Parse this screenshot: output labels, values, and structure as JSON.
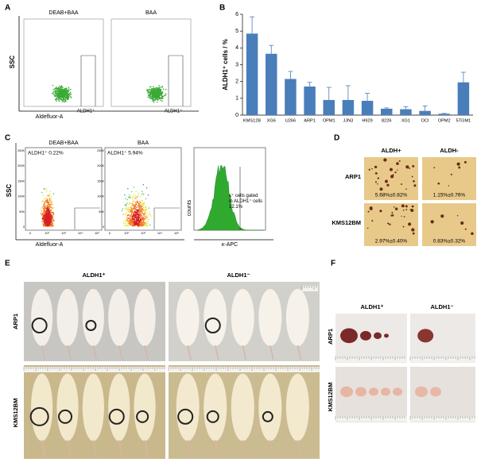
{
  "chart_data": {
    "type": "bar",
    "panel_label": "B",
    "y_label": "ALDH1⁺ cells / %",
    "categories": [
      "KMS12B",
      "XG6",
      "U266",
      "ARP1",
      "OPM1",
      "JJN3",
      "H929",
      "8226",
      "XG1",
      "OCI",
      "OPM2",
      "5TGM1"
    ],
    "values": [
      4.85,
      3.65,
      2.15,
      1.7,
      0.9,
      0.9,
      0.85,
      0.38,
      0.35,
      0.25,
      0.08,
      1.95
    ],
    "errors": [
      1.0,
      0.5,
      0.45,
      0.25,
      0.75,
      0.85,
      0.45,
      0.05,
      0.15,
      0.3,
      0.02,
      0.6
    ],
    "color": "#4a7ebb",
    "ylim": [
      0,
      6
    ],
    "yticks": [
      0,
      1,
      2,
      3,
      4,
      5,
      6
    ]
  },
  "panels": {
    "A": {
      "label": "A",
      "y_label": "SSC",
      "x_label": "Aldefluor-A",
      "plots": [
        {
          "title": "DEAB+BAA",
          "gate": "ALDH1⁺"
        },
        {
          "title": "BAA",
          "gate": "ALDH1⁺"
        }
      ]
    },
    "C": {
      "label": "C",
      "y_label": "SSC",
      "x_label": "Aldefluor-A",
      "plots": [
        {
          "title": "DEAB+BAA",
          "gate": "ALDH1⁺ 0.22%"
        },
        {
          "title": "BAA",
          "gate": "ALDH1⁺ 5.94%"
        }
      ],
      "yticks": [
        "250K",
        "200K",
        "150K",
        "100K",
        "50K",
        "0"
      ],
      "xticks": [
        "0",
        "10²",
        "10³",
        "10⁴",
        "10⁵"
      ],
      "hist": {
        "y_label": "counts",
        "x_label": "κ-APC",
        "note": "κ⁺ cells gated in ALDH1⁺ cells 12.1%"
      }
    },
    "D": {
      "label": "D",
      "columns": [
        "ALDH+",
        "ALDH-"
      ],
      "rows": [
        "ARP1",
        "KMS12BM"
      ],
      "cells": [
        [
          "5.68%±0.82%",
          "1.15%±0.76%"
        ],
        [
          "2.97%±0.40%",
          "0.83%±0.32%"
        ]
      ]
    },
    "E": {
      "label": "E",
      "columns": [
        "ALDH1⁺",
        "ALDH1⁻"
      ],
      "rows": [
        "ARP1",
        "KMS12BM"
      ]
    },
    "F": {
      "label": "F",
      "columns": [
        "ALDH1⁺",
        "ALDH1⁻"
      ],
      "rows": [
        "ARP1",
        "KMS12BM"
      ]
    }
  }
}
